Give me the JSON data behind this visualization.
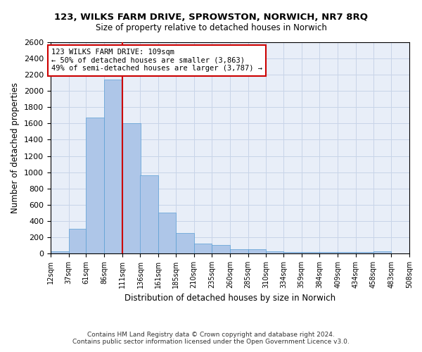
{
  "title": "123, WILKS FARM DRIVE, SPROWSTON, NORWICH, NR7 8RQ",
  "subtitle": "Size of property relative to detached houses in Norwich",
  "xlabel": "Distribution of detached houses by size in Norwich",
  "ylabel": "Number of detached properties",
  "bin_labels": [
    "12sqm",
    "37sqm",
    "61sqm",
    "86sqm",
    "111sqm",
    "136sqm",
    "161sqm",
    "185sqm",
    "210sqm",
    "235sqm",
    "260sqm",
    "285sqm",
    "310sqm",
    "334sqm",
    "359sqm",
    "384sqm",
    "409sqm",
    "434sqm",
    "458sqm",
    "483sqm",
    "508sqm"
  ],
  "bar_heights": [
    25,
    300,
    1670,
    2140,
    1600,
    960,
    500,
    250,
    120,
    100,
    50,
    50,
    30,
    20,
    20,
    20,
    15,
    15,
    25,
    0
  ],
  "bin_edges": [
    12,
    37,
    61,
    86,
    111,
    136,
    161,
    185,
    210,
    235,
    260,
    285,
    310,
    334,
    359,
    384,
    409,
    434,
    458,
    483,
    508
  ],
  "bar_color": "#aec6e8",
  "bar_edge_color": "#5a9fd4",
  "vline_x": 111,
  "vline_color": "#cc0000",
  "annotation_text": "123 WILKS FARM DRIVE: 109sqm\n← 50% of detached houses are smaller (3,863)\n49% of semi-detached houses are larger (3,787) →",
  "annotation_box_color": "#cc0000",
  "ylim": [
    0,
    2600
  ],
  "yticks": [
    0,
    200,
    400,
    600,
    800,
    1000,
    1200,
    1400,
    1600,
    1800,
    2000,
    2200,
    2400,
    2600
  ],
  "grid_color": "#c8d4e8",
  "background_color": "#e8eef8",
  "footer_line1": "Contains HM Land Registry data © Crown copyright and database right 2024.",
  "footer_line2": "Contains public sector information licensed under the Open Government Licence v3.0."
}
